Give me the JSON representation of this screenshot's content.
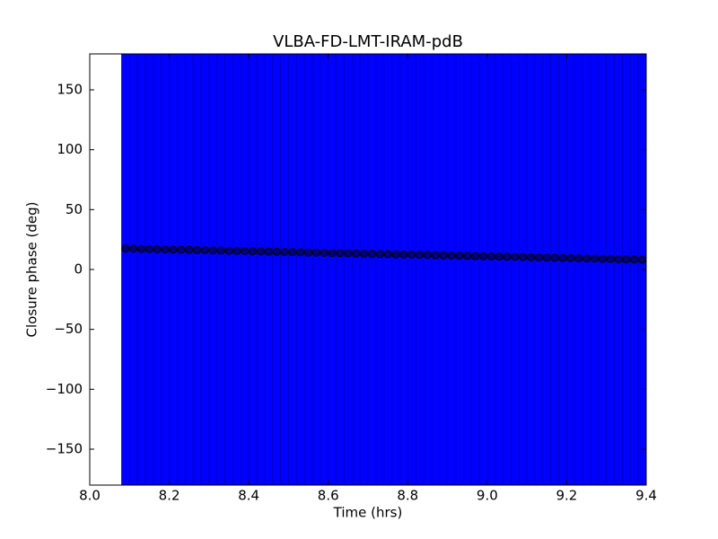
{
  "chart_data": {
    "type": "errorbar",
    "title": "VLBA-FD-LMT-IRAM-pdB",
    "x_label": "Time (hrs)",
    "y_label": "Closure phase (deg)",
    "x": [
      8.09,
      8.11,
      8.13,
      8.15,
      8.17,
      8.19,
      8.21,
      8.23,
      8.25,
      8.27,
      8.29,
      8.31,
      8.33,
      8.35,
      8.37,
      8.39,
      8.41,
      8.43,
      8.45,
      8.47,
      8.49,
      8.51,
      8.53,
      8.55,
      8.57,
      8.59,
      8.61,
      8.63,
      8.65,
      8.67,
      8.69,
      8.71,
      8.73,
      8.75,
      8.77,
      8.79,
      8.81,
      8.83,
      8.85,
      8.87,
      8.89,
      8.91,
      8.93,
      8.95,
      8.97,
      8.99,
      9.01,
      9.03,
      9.05,
      9.07,
      9.09,
      9.11,
      9.13,
      9.15,
      9.17,
      9.19,
      9.21,
      9.23,
      9.25,
      9.27,
      9.29,
      9.31,
      9.33,
      9.35,
      9.37,
      9.39
    ],
    "values": [
      17.5,
      17.4,
      17.2,
      17.1,
      16.9,
      16.8,
      16.6,
      16.5,
      16.4,
      16.2,
      16.1,
      15.9,
      15.8,
      15.6,
      15.5,
      15.4,
      15.2,
      15.1,
      14.9,
      14.8,
      14.6,
      14.5,
      14.4,
      14.2,
      14.1,
      13.9,
      13.8,
      13.6,
      13.5,
      13.4,
      13.2,
      13.1,
      12.9,
      12.8,
      12.6,
      12.5,
      12.4,
      12.2,
      12.1,
      11.9,
      11.8,
      11.6,
      11.5,
      11.4,
      11.2,
      11.1,
      10.9,
      10.8,
      10.6,
      10.5,
      10.4,
      10.2,
      10.1,
      9.9,
      9.8,
      9.6,
      9.5,
      9.4,
      9.2,
      9.1,
      8.9,
      8.8,
      8.6,
      8.5,
      8.4,
      8.2
    ],
    "error": 250,
    "color": "#0000ff",
    "marker_color": "#000080",
    "xlim": [
      8.0,
      9.4
    ],
    "xticks": [
      {
        "value": 8.0,
        "label": "8.0"
      },
      8.2,
      8.4,
      8.6,
      8.8,
      {
        "value": 9.0,
        "label": "9.0"
      },
      9.2,
      9.4
    ],
    "ylim": [
      -180,
      180
    ],
    "yticks": [
      {
        "value": -150,
        "label": "−150"
      },
      {
        "value": -100,
        "label": "−100"
      },
      {
        "value": -50,
        "label": "−50"
      },
      0,
      50,
      100,
      150
    ]
  }
}
